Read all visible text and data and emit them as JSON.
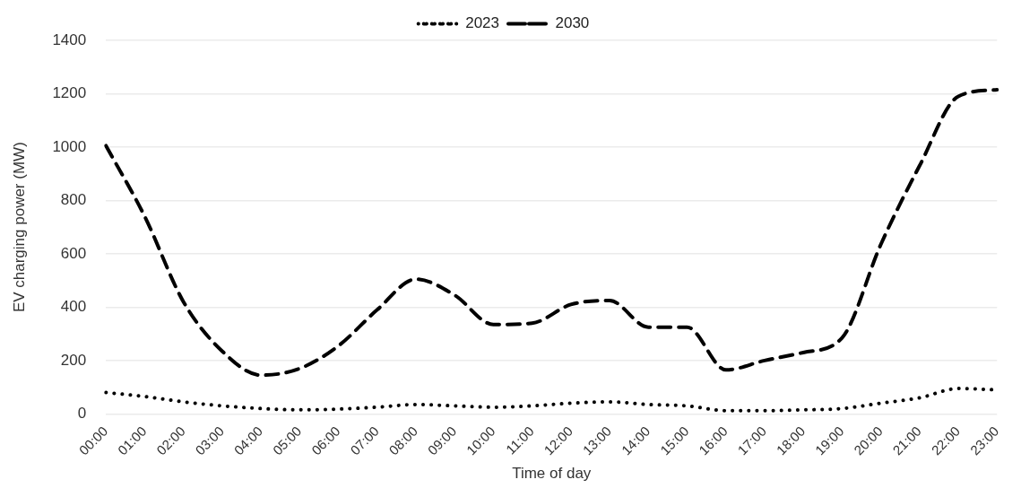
{
  "chart_data": {
    "type": "line",
    "xlabel": "Time of day",
    "ylabel": "EV charging power (MW)",
    "categories": [
      "00:00",
      "01:00",
      "02:00",
      "03:00",
      "04:00",
      "05:00",
      "06:00",
      "07:00",
      "08:00",
      "09:00",
      "10:00",
      "11:00",
      "12:00",
      "13:00",
      "14:00",
      "15:00",
      "16:00",
      "17:00",
      "18:00",
      "19:00",
      "20:00",
      "21:00",
      "22:00",
      "23:00"
    ],
    "series": [
      {
        "name": "2023",
        "color": "#000000",
        "line_style": "dotted",
        "values": [
          80,
          65,
          45,
          30,
          20,
          15,
          18,
          25,
          35,
          30,
          25,
          30,
          40,
          45,
          35,
          30,
          12,
          12,
          15,
          20,
          40,
          60,
          95,
          90
        ]
      },
      {
        "name": "2030",
        "color": "#000000",
        "line_style": "dashed",
        "values": [
          1005,
          740,
          420,
          235,
          145,
          170,
          255,
          390,
          505,
          445,
          335,
          340,
          410,
          425,
          325,
          325,
          165,
          200,
          230,
          285,
          635,
          930,
          1190,
          1215
        ]
      }
    ],
    "ylim": [
      0,
      1400
    ],
    "yticks": [
      0,
      200,
      400,
      600,
      800,
      1000,
      1200,
      1400
    ],
    "grid": "y",
    "legend": "top",
    "marker": "none"
  }
}
